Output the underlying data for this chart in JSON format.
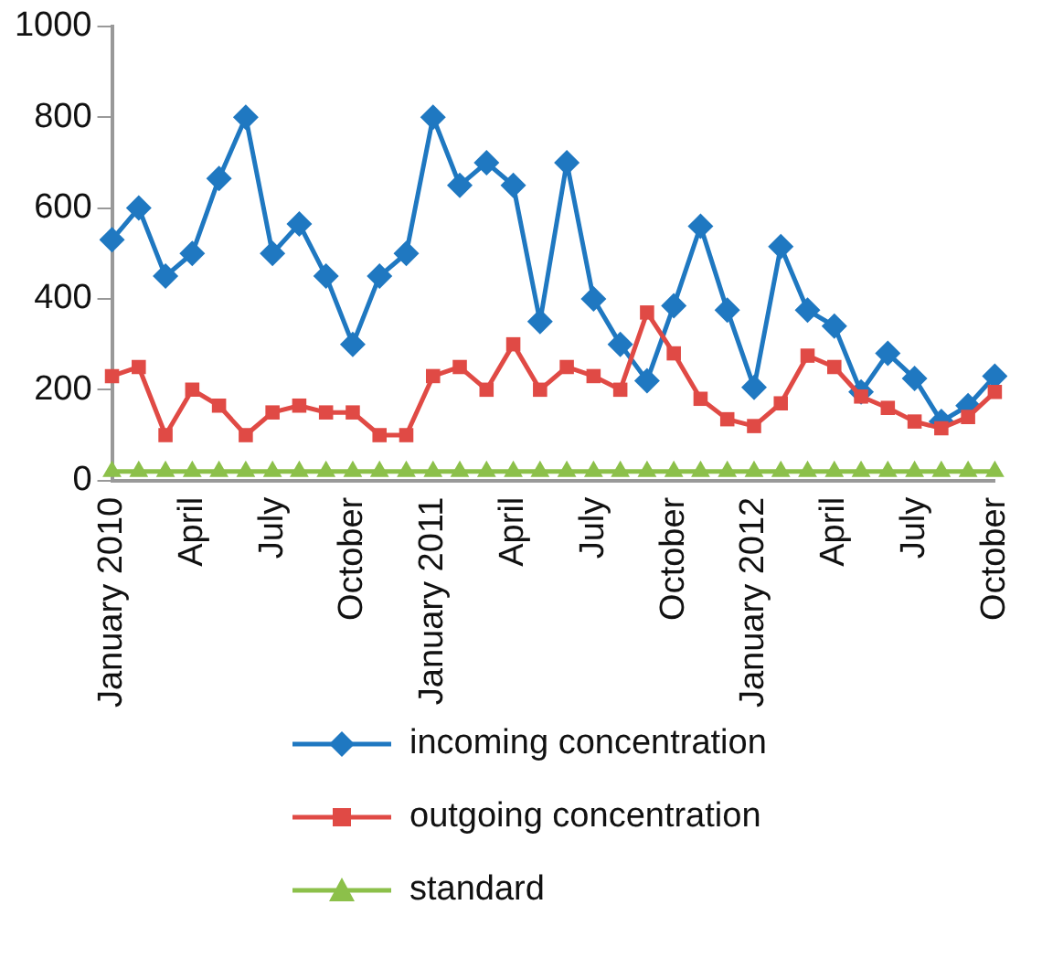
{
  "chart_data": {
    "type": "line",
    "categories": [
      "January 2010",
      null,
      null,
      "April",
      null,
      null,
      "July",
      null,
      null,
      "October",
      null,
      null,
      "January 2011",
      null,
      null,
      "April",
      null,
      null,
      "July",
      null,
      null,
      "October",
      null,
      null,
      "January 2012",
      null,
      null,
      "April",
      null,
      null,
      "July",
      null,
      null,
      "October"
    ],
    "series": [
      {
        "name": "incoming concentration",
        "color": "#1f78c1",
        "marker": "diamond",
        "values": [
          530,
          600,
          450,
          500,
          665,
          800,
          500,
          565,
          450,
          300,
          450,
          500,
          800,
          650,
          700,
          650,
          350,
          700,
          400,
          300,
          220,
          385,
          560,
          375,
          205,
          515,
          375,
          340,
          195,
          280,
          225,
          130,
          165,
          230
        ]
      },
      {
        "name": "outgoing concentration",
        "color": "#e04a45",
        "marker": "square",
        "values": [
          230,
          250,
          100,
          200,
          165,
          100,
          150,
          165,
          150,
          150,
          100,
          100,
          230,
          250,
          200,
          300,
          200,
          250,
          230,
          200,
          370,
          280,
          180,
          135,
          120,
          170,
          275,
          250,
          185,
          160,
          130,
          115,
          140,
          195
        ]
      },
      {
        "name": "standard",
        "color": "#8cc04a",
        "marker": "triangle",
        "values": [
          20,
          20,
          20,
          20,
          20,
          20,
          20,
          20,
          20,
          20,
          20,
          20,
          20,
          20,
          20,
          20,
          20,
          20,
          20,
          20,
          20,
          20,
          20,
          20,
          20,
          20,
          20,
          20,
          20,
          20,
          20,
          20,
          20,
          20
        ]
      }
    ],
    "ylim": [
      0,
      1000
    ],
    "yticks": [
      0,
      200,
      400,
      600,
      800,
      1000
    ],
    "grid": false,
    "legend": "bottom"
  }
}
